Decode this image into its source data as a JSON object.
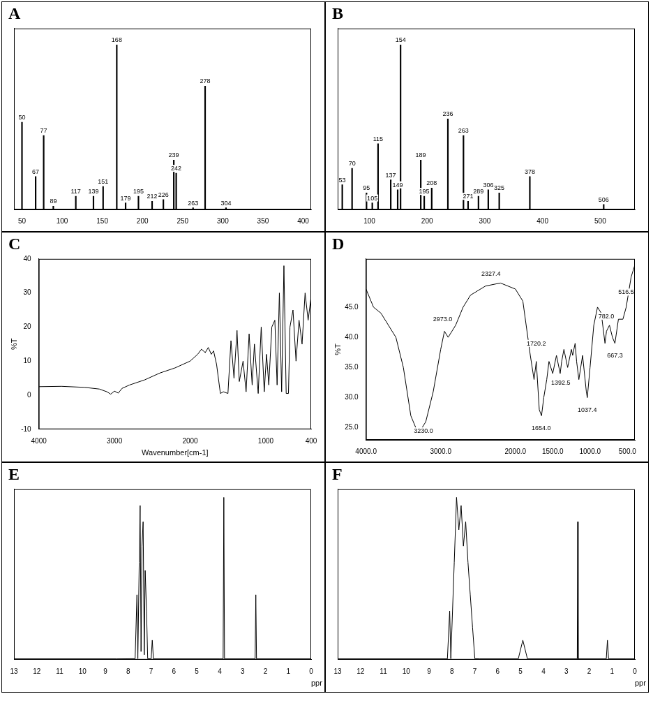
{
  "chart_data": [
    {
      "type": "bar",
      "title": "A",
      "x": [
        50,
        67,
        77,
        89,
        117,
        139,
        151,
        168,
        179,
        195,
        212,
        226,
        239,
        242,
        263,
        278,
        304
      ],
      "values": [
        53,
        20,
        45,
        2,
        8,
        8,
        14,
        100,
        4,
        8,
        5,
        6,
        30,
        22,
        1,
        75,
        1
      ],
      "color": "#000000",
      "data_labels": true,
      "tick_labels": "x",
      "grid": false,
      "xlim": [
        40,
        410
      ],
      "xticks": [
        50,
        100,
        150,
        200,
        250,
        300,
        350,
        400
      ],
      "ylim": [
        0,
        110
      ]
    },
    {
      "type": "bar",
      "title": "B",
      "x": [
        53,
        70,
        95,
        105,
        115,
        137,
        149,
        154,
        189,
        195,
        208,
        236,
        263,
        271,
        289,
        306,
        325,
        378,
        506
      ],
      "values": [
        15,
        25,
        10,
        4,
        40,
        18,
        12,
        100,
        30,
        8,
        13,
        55,
        45,
        5,
        8,
        12,
        10,
        20,
        3
      ],
      "color": "#000000",
      "data_labels": true,
      "tick_labels": "x",
      "grid": false,
      "xlim": [
        45,
        560
      ],
      "xticks": [
        100,
        200,
        300,
        400,
        500
      ],
      "ylim": [
        0,
        110
      ]
    },
    {
      "type": "line",
      "title": "C",
      "x_label": "Wavenumber[cm-1]",
      "y_label": "%T",
      "x": [
        4000,
        3700,
        3400,
        3200,
        3100,
        3050,
        3000,
        2950,
        2900,
        2800,
        2600,
        2400,
        2200,
        2000,
        1900,
        1850,
        1800,
        1760,
        1720,
        1690,
        1650,
        1600,
        1560,
        1500,
        1460,
        1420,
        1380,
        1350,
        1300,
        1260,
        1220,
        1180,
        1150,
        1100,
        1060,
        1020,
        990,
        960,
        920,
        880,
        850,
        820,
        790,
        760,
        730,
        700,
        680,
        640,
        600,
        560,
        520,
        480,
        440,
        400
      ],
      "values": [
        2.5,
        2.6,
        2.3,
        1.8,
        1,
        0.3,
        1.2,
        0.6,
        2,
        3,
        4.5,
        6.5,
        8,
        10,
        12,
        13.5,
        12.5,
        14,
        12,
        13,
        9,
        0.5,
        1,
        0.5,
        16,
        5,
        19,
        4,
        10,
        1,
        18,
        3,
        15,
        0.5,
        20,
        1,
        12,
        3,
        20,
        22,
        3,
        30,
        1,
        38,
        0.5,
        0.5,
        20,
        25,
        10,
        22,
        15,
        30,
        22,
        29
      ],
      "color": "#000000",
      "grid": false,
      "xlim": [
        4000,
        400
      ],
      "xticks": [
        4000,
        3000,
        2000,
        1000,
        400
      ],
      "ylim": [
        -10,
        40
      ],
      "yticks": [
        -10,
        0,
        10,
        20,
        30,
        40
      ]
    },
    {
      "type": "line",
      "title": "D",
      "y_label": "%T",
      "x": [
        4000,
        3900,
        3800,
        3600,
        3500,
        3400,
        3300,
        3200,
        3100,
        3000,
        2950,
        2900,
        2800,
        2700,
        2600,
        2400,
        2200,
        2000,
        1900,
        1800,
        1750,
        1720,
        1680,
        1650,
        1620,
        1580,
        1550,
        1500,
        1450,
        1400,
        1380,
        1350,
        1300,
        1250,
        1233,
        1200,
        1180,
        1150,
        1100,
        1050,
        1037,
        1000,
        950,
        900,
        850,
        800,
        780,
        740,
        700,
        667,
        620,
        560,
        516,
        450,
        400
      ],
      "values": [
        48,
        45,
        44,
        40,
        35,
        27,
        24,
        26,
        31,
        38,
        41,
        40,
        42,
        45,
        47,
        48.5,
        49,
        48,
        46,
        37,
        33,
        36,
        28,
        27,
        30,
        33,
        36,
        34,
        37,
        34,
        36,
        38,
        35,
        38,
        37,
        39,
        36,
        33,
        37,
        31,
        30,
        35,
        42,
        45,
        44,
        39,
        41,
        42,
        40,
        39,
        43,
        43,
        45,
        50,
        52
      ],
      "color": "#000000",
      "grid": false,
      "xlim": [
        4000,
        400
      ],
      "xticks": [
        {
          "value": 4000,
          "label": "4000.0"
        },
        {
          "value": 3000,
          "label": "3000.0"
        },
        {
          "value": 2000,
          "label": "2000.0"
        },
        {
          "value": 1500,
          "label": "1500.0"
        },
        {
          "value": 1000,
          "label": "1000.0"
        },
        {
          "value": 500,
          "label": "500.0"
        }
      ],
      "ylim": [
        23,
        53
      ],
      "yticks": [
        {
          "value": 25,
          "label": "25.0"
        },
        {
          "value": 30,
          "label": "30.0"
        },
        {
          "value": 35,
          "label": "35.0"
        },
        {
          "value": 40,
          "label": "40.0"
        },
        {
          "value": 45,
          "label": "45.0"
        }
      ],
      "annotations": [
        {
          "x": 3230.0,
          "y": 24.5,
          "text": "3230.0"
        },
        {
          "x": 2973.0,
          "y": 43,
          "text": "2973.0"
        },
        {
          "x": 2327.4,
          "y": 50.5,
          "text": "2327.4"
        },
        {
          "x": 1720.2,
          "y": 39,
          "text": "1720.2"
        },
        {
          "x": 1654.0,
          "y": 25,
          "text": "1654.0"
        },
        {
          "x": 1392.5,
          "y": 32.5,
          "text": "1392.5"
        },
        {
          "x": 1037.4,
          "y": 28,
          "text": "1037.4"
        },
        {
          "x": 782.0,
          "y": 43.5,
          "text": "782.0"
        },
        {
          "x": 667.3,
          "y": 37,
          "text": "667.3"
        },
        {
          "x": 516.5,
          "y": 47.5,
          "text": "516.5"
        }
      ]
    },
    {
      "type": "line",
      "title": "E",
      "x_label": "ppm",
      "x": [
        13,
        8.5,
        7.7,
        7.62,
        7.58,
        7.52,
        7.48,
        7.44,
        7.4,
        7.35,
        7.3,
        7.26,
        7.2,
        7.15,
        7.0,
        6.95,
        6.9,
        4,
        3.85,
        3.82,
        3.79,
        2.45,
        2.42,
        2.39,
        0
      ],
      "values": [
        0.5,
        0.5,
        0.6,
        40,
        0.6,
        60,
        95,
        5,
        70,
        85,
        3,
        55,
        30,
        0.6,
        0.5,
        12,
        0.5,
        0.5,
        0.5,
        100,
        0.5,
        0.5,
        40,
        0.5,
        0.5
      ],
      "color": "#000000",
      "tick_labels": "x",
      "grid": false,
      "xlim": [
        13,
        0
      ],
      "xticks": [
        13,
        12,
        11,
        10,
        9,
        8,
        7,
        6,
        5,
        4,
        3,
        2,
        1,
        0
      ],
      "ylim": [
        0,
        105
      ]
    },
    {
      "type": "line",
      "title": "F",
      "x_label": "ppm",
      "x": [
        13,
        8.2,
        8.1,
        8.05,
        7.9,
        7.8,
        7.7,
        7.6,
        7.5,
        7.4,
        7.3,
        7.2,
        7.1,
        7.0,
        6.8,
        5.1,
        4.9,
        4.7,
        2.52,
        2.5,
        2.48,
        1.25,
        1.2,
        1.15,
        0
      ],
      "values": [
        0.5,
        0.5,
        30,
        0.6,
        60,
        100,
        80,
        95,
        70,
        85,
        60,
        40,
        20,
        0.6,
        0.5,
        0.5,
        12,
        0.5,
        0.5,
        85,
        0.5,
        0.5,
        12,
        0.5,
        0.5
      ],
      "color": "#000000",
      "tick_labels": "x",
      "grid": false,
      "xlim": [
        13,
        0
      ],
      "xticks": [
        13,
        12,
        11,
        10,
        9,
        8,
        7,
        6,
        5,
        4,
        3,
        2,
        1,
        0
      ],
      "ylim": [
        0,
        105
      ]
    }
  ]
}
